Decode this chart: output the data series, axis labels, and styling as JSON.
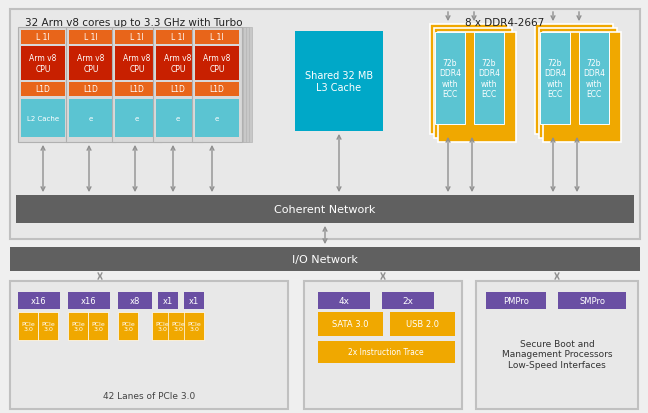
{
  "bg_color": "#efefef",
  "cpu_orange": "#e8651a",
  "cpu_red": "#c82000",
  "cpu_blue": "#5bc4d2",
  "l3_color": "#00a8c8",
  "ddr_outer": "#f0a800",
  "ddr_inner": "#5bc4d2",
  "pcie_purple": "#6a4fa3",
  "pcie_orange": "#f0a800",
  "bar_color": "#606060",
  "arrow_color": "#909090",
  "box_fill": "#e8e8e8",
  "box_ec": "#c0c0c0",
  "card_fill": "#d8d8d8",
  "card_ec": "#b0b0b0",
  "title_top": "32 Arm v8 cores up to 3.3 GHz with Turbo",
  "title_ddr": "8 x DDR4-2667",
  "coherent_text": "Coherent Network",
  "io_text": "I/O Network",
  "cpu_l1i": "L 1I",
  "cpu_main": "Arm v8\nCPU",
  "cpu_l1d": "L1D",
  "cpu_l2": "L2 Cache",
  "l3_text": "Shared 32 MB\nL3 Cache",
  "ddr_text": "72b\nDDR4\nwith\nECC",
  "pcie_text": "PCIe\n3.0",
  "pcie_bottom": "42 Lanes of PCIe 3.0",
  "sata_text": "SATA 3.0",
  "usb_text": "USB 2.0",
  "trace_text": "2x Instruction Trace",
  "lbl_4x": "4x",
  "lbl_2x": "2x",
  "pmpro": "PMPro",
  "smpro": "SMPro",
  "secure_text": "Secure Boot and\nManagement Processors\nLow-Speed Interfaces"
}
